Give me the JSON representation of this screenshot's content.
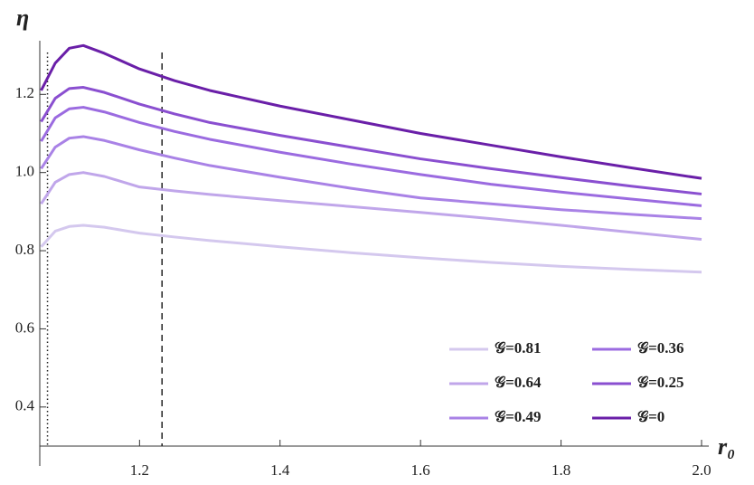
{
  "chart_data": {
    "type": "line",
    "y_label": "η",
    "x_label": "r₀",
    "x": [
      1.06,
      1.08,
      1.1,
      1.12,
      1.15,
      1.2,
      1.25,
      1.3,
      1.4,
      1.5,
      1.6,
      1.7,
      1.8,
      1.9,
      2.0
    ],
    "series": [
      {
        "name": "𝒢=0.81",
        "color": "#d4c8ee",
        "values": [
          0.81,
          0.85,
          0.862,
          0.865,
          0.86,
          0.845,
          0.835,
          0.826,
          0.81,
          0.795,
          0.782,
          0.77,
          0.76,
          0.752,
          0.745
        ]
      },
      {
        "name": "𝒢=0.64",
        "color": "#c0a6ea",
        "values": [
          0.92,
          0.975,
          0.995,
          1.0,
          0.99,
          0.963,
          0.953,
          0.944,
          0.928,
          0.913,
          0.898,
          0.882,
          0.865,
          0.847,
          0.829
        ]
      },
      {
        "name": "𝒢=0.49",
        "color": "#a982e6",
        "values": [
          1.01,
          1.065,
          1.088,
          1.092,
          1.082,
          1.058,
          1.037,
          1.018,
          0.988,
          0.96,
          0.935,
          0.92,
          0.905,
          0.893,
          0.882
        ]
      },
      {
        "name": "𝒢=0.36",
        "color": "#9b6be0",
        "values": [
          1.08,
          1.14,
          1.163,
          1.167,
          1.155,
          1.128,
          1.105,
          1.085,
          1.052,
          1.022,
          0.995,
          0.97,
          0.95,
          0.932,
          0.915
        ]
      },
      {
        "name": "𝒢=0.25",
        "color": "#8a4fd0",
        "values": [
          1.13,
          1.19,
          1.215,
          1.218,
          1.205,
          1.175,
          1.15,
          1.128,
          1.095,
          1.065,
          1.035,
          1.01,
          0.987,
          0.965,
          0.945
        ]
      },
      {
        "name": "𝒢=0",
        "color": "#6a1fa8",
        "values": [
          1.21,
          1.28,
          1.318,
          1.325,
          1.305,
          1.265,
          1.235,
          1.21,
          1.17,
          1.135,
          1.1,
          1.07,
          1.04,
          1.012,
          0.985
        ]
      }
    ],
    "xlim": [
      1.058,
      2.0
    ],
    "ylim": [
      0.3,
      1.335
    ],
    "xticks": [
      1.2,
      1.4,
      1.6,
      1.8,
      {
        "value": 2,
        "label": "2.0"
      }
    ],
    "yticks": [
      0.4,
      0.6,
      0.8,
      {
        "value": 1,
        "label": "1.0"
      },
      1.2
    ],
    "vlines": [
      {
        "value": 1.069,
        "style": "dotted"
      },
      {
        "value": 1.232,
        "style": "dashed"
      }
    ],
    "legend": "lower right"
  }
}
